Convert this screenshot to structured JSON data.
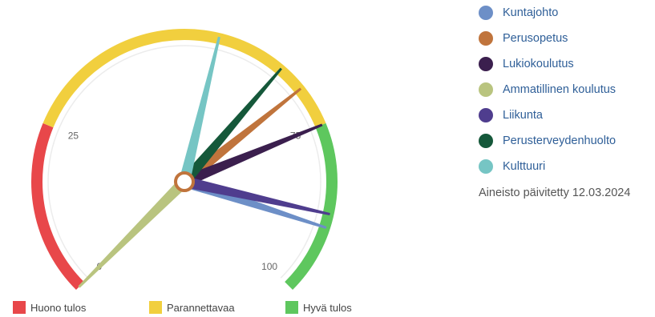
{
  "chart_data": {
    "type": "gauge",
    "min": 0,
    "max": 100,
    "tick_labels": [
      {
        "value": 0,
        "label": "0"
      },
      {
        "value": 25,
        "label": "25"
      },
      {
        "value": 75,
        "label": "75"
      },
      {
        "value": 100,
        "label": "100"
      }
    ],
    "bands": [
      {
        "name": "Huono tulos",
        "from": 0,
        "to": 25,
        "color": "#e8474a"
      },
      {
        "name": "Parannettavaa",
        "from": 25,
        "to": 75,
        "color": "#f1cf3e"
      },
      {
        "name": "Hyvä tulos",
        "from": 75,
        "to": 100,
        "color": "#5ec75e"
      }
    ],
    "series": [
      {
        "name": "Kuntajohto",
        "value": 90,
        "color": "#6d8fc7"
      },
      {
        "name": "Perusopetus",
        "value": 69,
        "color": "#c0743c"
      },
      {
        "name": "Lukiokoulutus",
        "value": 75,
        "color": "#3b1f4e"
      },
      {
        "name": "Ammatillinen koulutus",
        "value": 0,
        "color": "#b9c47f"
      },
      {
        "name": "Liikunta",
        "value": 88,
        "color": "#4f3d8e"
      },
      {
        "name": "Perusterveydenhuolto",
        "value": 65,
        "color": "#15583a"
      },
      {
        "name": "Kulttuuri",
        "value": 55,
        "color": "#76c5c4"
      }
    ]
  },
  "updated_text": "Aineisto päivitetty 12.03.2024"
}
